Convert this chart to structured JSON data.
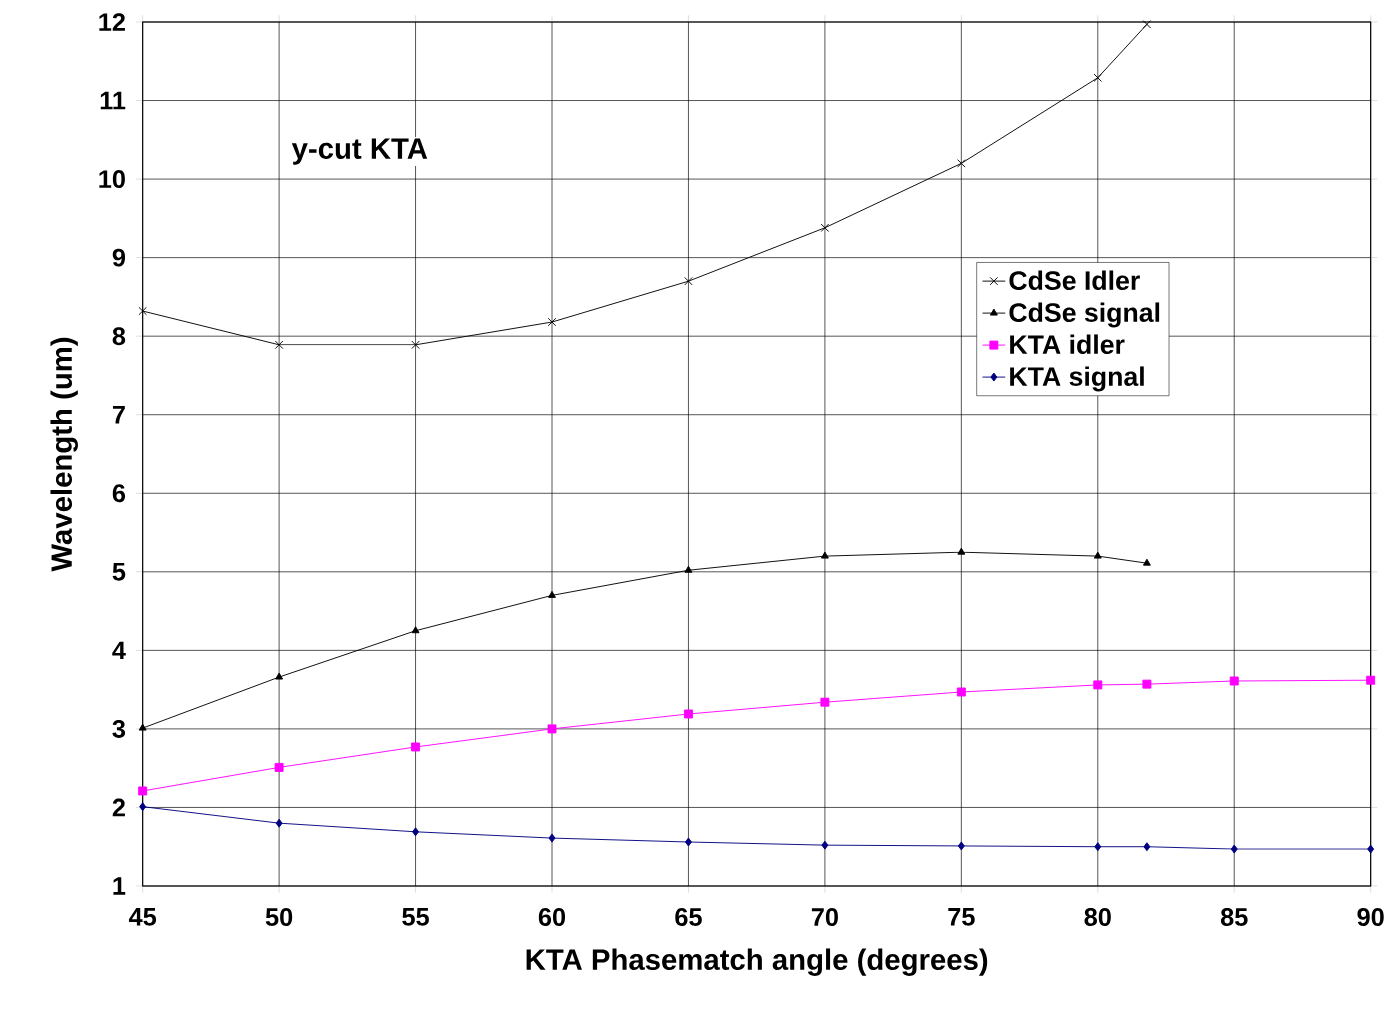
{
  "chart_data": {
    "type": "line",
    "xlabel": "KTA Phasematch angle (degrees)",
    "ylabel": "Wavelength (um)",
    "annotations": [
      "y-cut KTA"
    ],
    "xlim": [
      45,
      90
    ],
    "xticks": [
      45,
      50,
      55,
      60,
      65,
      70,
      75,
      80,
      85,
      90
    ],
    "ylim": [
      1,
      12
    ],
    "yticks": [
      1,
      2,
      3,
      4,
      5,
      6,
      7,
      8,
      9,
      10,
      11,
      12
    ],
    "grid": true,
    "legend": "right",
    "line_style": "solid",
    "series": [
      {
        "name": "CdSe Idler",
        "color": "#000000",
        "marker": "cross",
        "x": [
          45,
          50,
          55,
          60,
          65,
          70,
          75,
          80,
          81.8
        ],
        "values": [
          8.32,
          7.89,
          7.89,
          8.18,
          8.7,
          9.38,
          10.2,
          11.29,
          11.97
        ]
      },
      {
        "name": "CdSe signal",
        "color": "#000000",
        "marker": "triangle",
        "x": [
          45,
          50,
          55,
          60,
          65,
          70,
          75,
          80,
          81.8
        ],
        "values": [
          3.01,
          3.66,
          4.25,
          4.7,
          5.02,
          5.2,
          5.25,
          5.2,
          5.11
        ]
      },
      {
        "name": "KTA idler",
        "color": "#ff00ff",
        "marker": "square",
        "x": [
          45,
          50,
          55,
          60,
          65,
          70,
          75,
          80,
          81.8,
          85,
          90
        ],
        "values": [
          2.21,
          2.51,
          2.77,
          3.0,
          3.19,
          3.34,
          3.47,
          3.56,
          3.57,
          3.61,
          3.62
        ]
      },
      {
        "name": "KTA signal",
        "color": "#000080",
        "marker": "diamond",
        "x": [
          45,
          50,
          55,
          60,
          65,
          70,
          75,
          80,
          81.8,
          85,
          90
        ],
        "values": [
          2.01,
          1.8,
          1.69,
          1.61,
          1.56,
          1.52,
          1.51,
          1.5,
          1.5,
          1.47,
          1.47
        ]
      }
    ]
  }
}
